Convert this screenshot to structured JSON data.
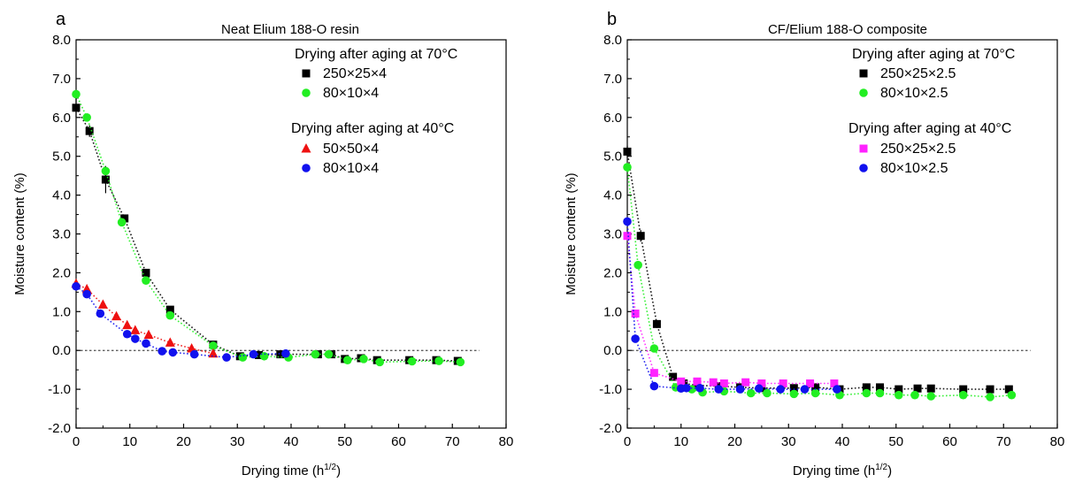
{
  "chart_data": [
    {
      "type": "scatter",
      "panel_label": "a",
      "title": "Neat Elium 188-O resin",
      "xlabel": "Drying time (h",
      "xlabel_sup": "1/2",
      "xlabel_end": ")",
      "ylabel": "Moisture content (%)",
      "xlim": [
        0,
        80
      ],
      "ylim": [
        -2.0,
        8.0
      ],
      "xticks": [
        0,
        10,
        20,
        30,
        40,
        50,
        60,
        70,
        80
      ],
      "yticks": [
        -2.0,
        -1.0,
        0.0,
        1.0,
        2.0,
        3.0,
        4.0,
        5.0,
        6.0,
        7.0,
        8.0
      ],
      "ytick_labels": [
        "-2.0",
        "-1.0",
        "0.0",
        "1.0",
        "2.0",
        "3.0",
        "4.0",
        "5.0",
        "6.0",
        "7.0",
        "8.0"
      ],
      "reference_line_y": 0,
      "legend_groups": [
        {
          "title": "Drying after aging at 70°C",
          "series": [
            0,
            1
          ]
        },
        {
          "title": "Drying after aging at 40°C",
          "series": [
            2,
            3
          ]
        }
      ],
      "series": [
        {
          "name": "250×25×4",
          "marker": "square",
          "color": "#000000",
          "x": [
            0,
            2.5,
            5.5,
            9,
            13,
            17.5,
            25.5,
            30.5,
            34,
            38,
            45,
            47.5,
            50,
            53,
            56,
            62,
            67,
            71
          ],
          "y": [
            6.25,
            5.65,
            4.4,
            3.4,
            2.0,
            1.05,
            0.15,
            -0.15,
            -0.12,
            -0.1,
            -0.1,
            -0.1,
            -0.22,
            -0.2,
            -0.25,
            -0.25,
            -0.25,
            -0.27
          ],
          "err": [
            0.25,
            0.15,
            0.35,
            0.1,
            0.1,
            0.08,
            0.05,
            0.05,
            0.05,
            0.05,
            0.05,
            0.05,
            0.05,
            0.05,
            0.05,
            0.05,
            0.05,
            0.05
          ]
        },
        {
          "name": "80×10×4",
          "marker": "circle",
          "color": "#22ee22",
          "x": [
            0,
            2,
            5.5,
            8.5,
            13,
            17.5,
            25.5,
            31,
            35,
            39.5,
            44.5,
            47,
            50.5,
            53.5,
            56.5,
            62.5,
            67.5,
            71.5
          ],
          "y": [
            6.6,
            6.0,
            4.62,
            3.3,
            1.8,
            0.9,
            0.12,
            -0.18,
            -0.15,
            -0.18,
            -0.1,
            -0.1,
            -0.25,
            -0.22,
            -0.3,
            -0.28,
            -0.27,
            -0.3
          ]
        },
        {
          "name": "50×50×4",
          "marker": "triangle",
          "color": "#ee1111",
          "x": [
            0,
            2,
            5,
            7.5,
            9.5,
            11,
            13.5,
            17.5,
            21.5,
            25.5
          ],
          "y": [
            1.72,
            1.58,
            1.18,
            0.88,
            0.65,
            0.52,
            0.4,
            0.2,
            0.05,
            -0.08
          ]
        },
        {
          "name": "80×10×4",
          "marker": "circle",
          "color": "#1111ee",
          "x": [
            0,
            2,
            4.5,
            9.5,
            11,
            13,
            16,
            18,
            22,
            28,
            33,
            39
          ],
          "y": [
            1.65,
            1.45,
            0.95,
            0.42,
            0.3,
            0.18,
            -0.02,
            -0.05,
            -0.1,
            -0.18,
            -0.1,
            -0.08
          ]
        }
      ]
    },
    {
      "type": "scatter",
      "panel_label": "b",
      "title": "CF/Elium 188-O composite",
      "xlabel": "Drying time (h",
      "xlabel_sup": "1/2",
      "xlabel_end": ")",
      "ylabel": "Moisture content (%)",
      "xlim": [
        0,
        80
      ],
      "ylim": [
        -2.0,
        8.0
      ],
      "xticks": [
        0,
        10,
        20,
        30,
        40,
        50,
        60,
        70,
        80
      ],
      "yticks": [
        -2.0,
        -1.0,
        0.0,
        1.0,
        2.0,
        3.0,
        4.0,
        5.0,
        6.0,
        7.0,
        8.0
      ],
      "ytick_labels": [
        "-2.0",
        "-1.0",
        "0.0",
        "1.0",
        "2.0",
        "3.0",
        "4.0",
        "5.0",
        "6.0",
        "7.0",
        "8.0"
      ],
      "reference_line_y": 0,
      "legend_groups": [
        {
          "title": "Drying after aging at 70°C",
          "series": [
            0,
            1
          ]
        },
        {
          "title": "Drying after aging at 40°C",
          "series": [
            2,
            3
          ]
        }
      ],
      "series": [
        {
          "name": "250×25×2.5",
          "marker": "square",
          "color": "#000000",
          "x": [
            0,
            2.5,
            5.5,
            8.5,
            10.5,
            13,
            17,
            21,
            25,
            31,
            35,
            39.5,
            44.5,
            47,
            50.5,
            54,
            56.5,
            62.5,
            67.5,
            71
          ],
          "y": [
            5.12,
            2.95,
            0.68,
            -0.68,
            -0.85,
            -0.9,
            -0.92,
            -0.95,
            -0.97,
            -0.97,
            -0.95,
            -1.0,
            -0.95,
            -0.95,
            -1.0,
            -0.98,
            -0.98,
            -1.0,
            -1.0,
            -1.0
          ],
          "err": [
            0.15,
            0.15,
            0.1,
            0.05,
            0.05,
            0.05,
            0.05,
            0.05,
            0.05,
            0.05,
            0.05,
            0.05,
            0.05,
            0.05,
            0.05,
            0.05,
            0.05,
            0.05,
            0.05,
            0.05
          ]
        },
        {
          "name": "80×10×2.5",
          "marker": "circle",
          "color": "#22ee22",
          "x": [
            0,
            2,
            5,
            9,
            12,
            14,
            18,
            23,
            26,
            31,
            35,
            39.5,
            44.5,
            47,
            50.5,
            53.5,
            56.5,
            62.5,
            67.5,
            71.5
          ],
          "y": [
            4.72,
            2.2,
            0.05,
            -0.95,
            -1.0,
            -1.08,
            -1.05,
            -1.1,
            -1.1,
            -1.12,
            -1.1,
            -1.15,
            -1.1,
            -1.1,
            -1.15,
            -1.15,
            -1.18,
            -1.15,
            -1.2,
            -1.15
          ]
        },
        {
          "name": "250×25×2.5",
          "marker": "square",
          "color": "#ff22ff",
          "x": [
            0,
            1.5,
            5,
            10,
            13,
            16,
            18,
            22,
            25,
            29,
            34,
            38.5
          ],
          "y": [
            2.95,
            0.95,
            -0.58,
            -0.8,
            -0.8,
            -0.82,
            -0.85,
            -0.82,
            -0.85,
            -0.85,
            -0.85,
            -0.85
          ]
        },
        {
          "name": "80×10×2.5",
          "marker": "circle",
          "color": "#1111ee",
          "x": [
            0,
            1.5,
            5,
            10,
            11,
            13.5,
            17,
            21,
            24.5,
            28.5,
            33,
            39
          ],
          "y": [
            3.32,
            0.3,
            -0.92,
            -0.98,
            -0.97,
            -0.97,
            -1.0,
            -1.0,
            -0.98,
            -1.0,
            -1.0,
            -1.0
          ]
        }
      ]
    }
  ]
}
